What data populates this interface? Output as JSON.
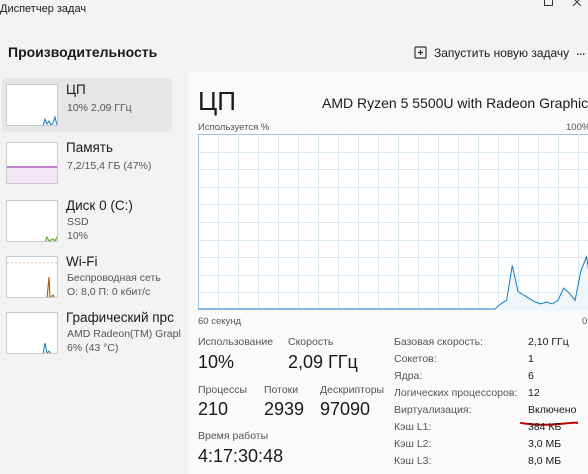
{
  "window": {
    "title": "Диспетчер задач"
  },
  "header": {
    "page_title": "Производительность",
    "run_task_label": "Запустить новую задачу",
    "more_label": "..."
  },
  "sidebar": {
    "items": [
      {
        "name": "ЦП",
        "sub1": "10%  2,09 ГГц",
        "sub2": "",
        "sub3": "",
        "color": "#117dbb"
      },
      {
        "name": "Память",
        "sub1": "7,2/15,4 ГБ (47%)",
        "sub2": "",
        "sub3": "",
        "color": "#8b12ae"
      },
      {
        "name": "Диск 0 (C:)",
        "sub1": "SSD",
        "sub2": "10%",
        "sub3": "",
        "color": "#4da60c"
      },
      {
        "name": "Wi-Fi",
        "sub1": "Беспроводная сеть",
        "sub2": "О: 8,0  П: 0 кбит/с",
        "sub3": "",
        "color": "#a74f01"
      },
      {
        "name": "Графический прс",
        "sub1": "AMD Radeon(TM) Grapl",
        "sub2": "6%  (43 °C)",
        "sub3": "",
        "color": "#117dbb"
      }
    ]
  },
  "main": {
    "title": "ЦП",
    "model": "AMD Ryzen 5 5500U with Radeon Graphics",
    "util_label": "Используется %",
    "util_max": "100%",
    "time_label": "60 секунд",
    "time_zero": "0",
    "graph_series_percent": [
      0,
      0,
      0,
      0,
      0,
      0,
      0,
      0,
      0,
      0,
      0,
      0,
      0,
      0,
      0,
      0,
      0,
      0,
      0,
      0,
      0,
      0,
      0,
      0,
      0,
      0,
      0,
      0,
      0,
      0,
      0,
      0,
      0,
      0,
      0,
      0,
      0,
      0,
      0,
      0,
      0,
      0,
      0,
      0,
      0,
      0,
      0,
      0,
      0,
      0,
      0,
      0,
      0,
      3,
      5,
      25,
      10,
      8,
      6,
      4,
      3,
      4,
      3,
      5,
      12,
      9,
      5,
      22,
      30,
      8,
      18
    ],
    "stats": {
      "usage_label": "Использование",
      "usage_value": "10%",
      "speed_label": "Скорость",
      "speed_value": "2,09 ГГц",
      "processes_label": "Процессы",
      "processes_value": "210",
      "threads_label": "Потоки",
      "threads_value": "2939",
      "handles_label": "Дескрипторы",
      "handles_value": "97090",
      "uptime_label": "Время работы",
      "uptime_value": "4:17:30:48"
    },
    "specs": [
      {
        "label": "Базовая скорость:",
        "value": "2,10 ГГц"
      },
      {
        "label": "Сокетов:",
        "value": "1"
      },
      {
        "label": "Ядра:",
        "value": "6"
      },
      {
        "label": "Логических процессоров:",
        "value": "12"
      },
      {
        "label": "Виртуализация:",
        "value": "Включено"
      },
      {
        "label": "Кэш L1:",
        "value": "384 КБ"
      },
      {
        "label": "Кэш L2:",
        "value": "3,0 МБ"
      },
      {
        "label": "Кэш L3:",
        "value": "8,0 МБ"
      }
    ]
  },
  "colors": {
    "cpu_line": "#117dbb",
    "cpu_fill": "#f1f6fa",
    "grid": "#d9eaf4",
    "annotation": "#c00000"
  }
}
